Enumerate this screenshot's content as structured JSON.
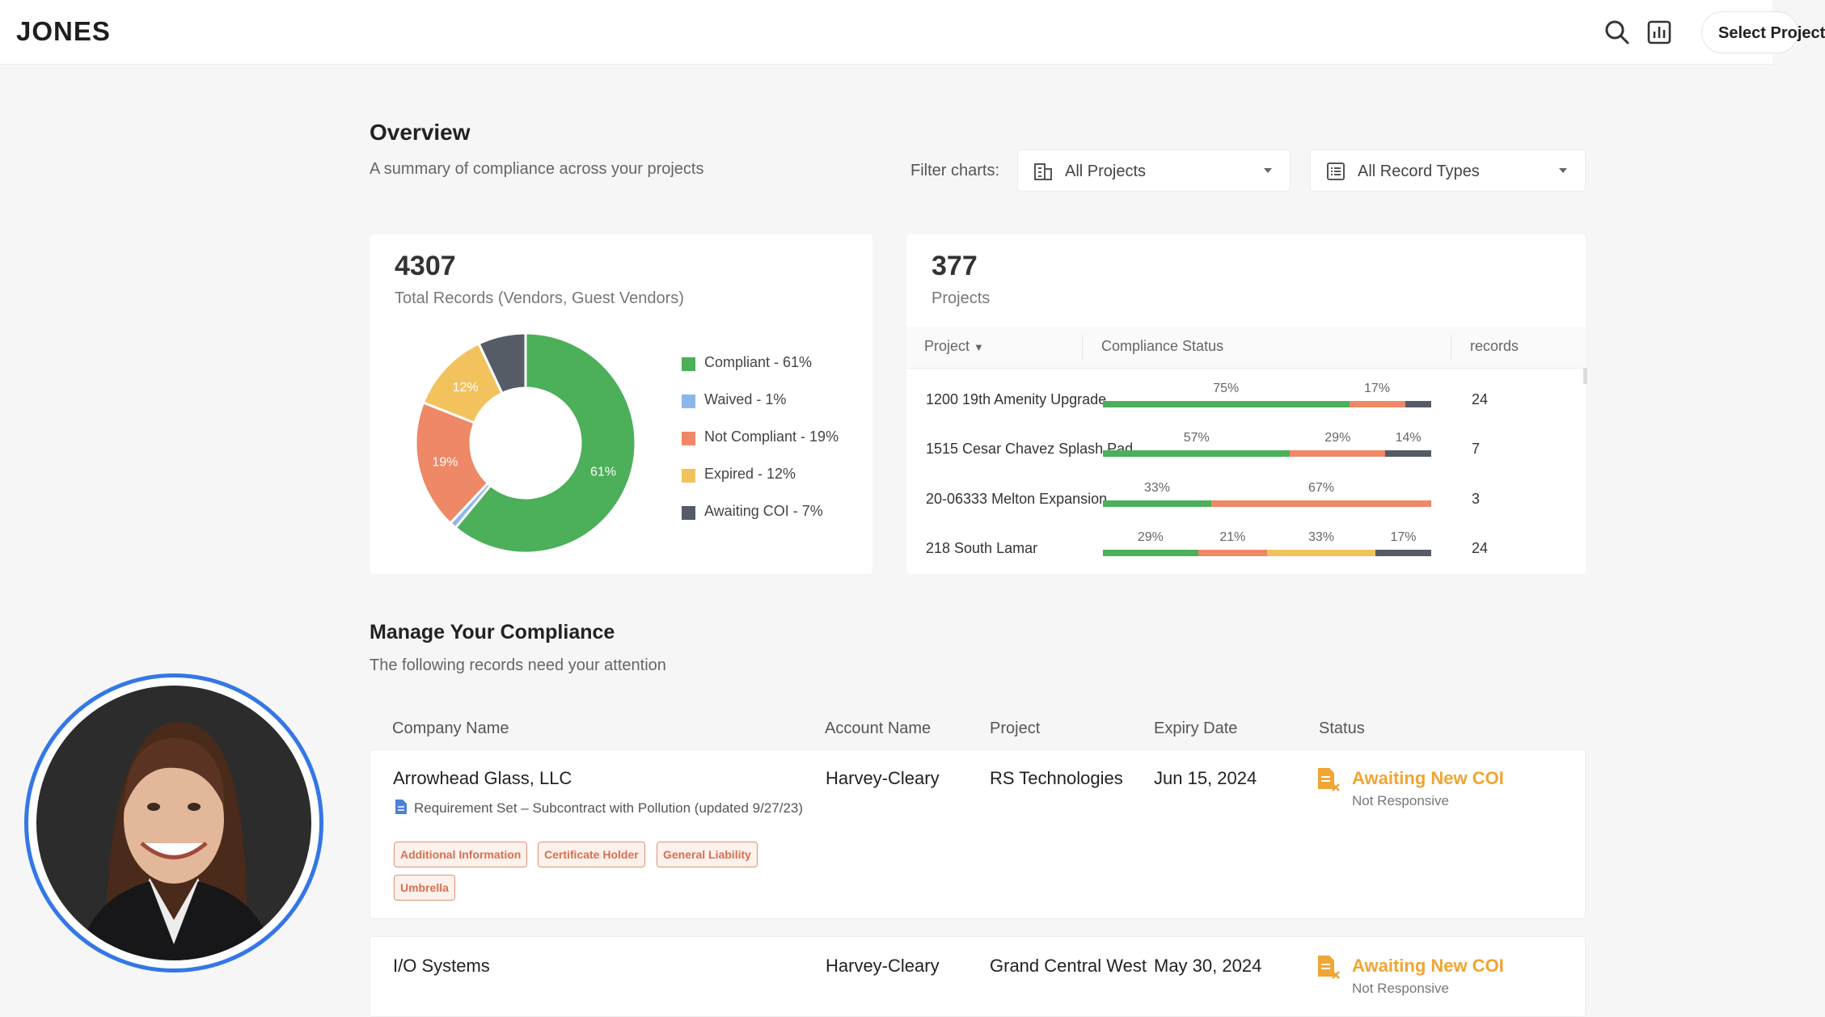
{
  "app": {
    "logo": "JONES",
    "select_label": "Select Project"
  },
  "overview": {
    "title": "Overview",
    "subtitle": "A summary of compliance across your projects",
    "filter_label": "Filter charts:",
    "project_filter": "All Projects",
    "record_type_filter": "All Record Types"
  },
  "records_card": {
    "total": "4307",
    "label": "Total Records (Vendors, Guest Vendors)",
    "legend": [
      {
        "label": "Compliant - 61%",
        "color": "#4caf5a"
      },
      {
        "label": "Waived - 1%",
        "color": "#8ab8ea"
      },
      {
        "label": "Not Compliant - 19%",
        "color": "#ee8866"
      },
      {
        "label": "Expired - 12%",
        "color": "#f2c35c"
      },
      {
        "label": "Awaiting COI - 7%",
        "color": "#555c66"
      }
    ]
  },
  "projects_card": {
    "total": "377",
    "label": "Projects",
    "col_project": "Project",
    "col_status": "Compliance Status",
    "col_records": "records",
    "rows": [
      {
        "name": "1200 19th Amenity Upgrade",
        "records": "24"
      },
      {
        "name": "1515 Cesar Chavez Splash Pad",
        "records": "7"
      },
      {
        "name": "20-06333 Melton Expansion",
        "records": "3"
      },
      {
        "name": "218 South Lamar",
        "records": "24"
      }
    ]
  },
  "chart_data": [
    {
      "type": "pie",
      "categories": [
        "Compliant",
        "Waived",
        "Not Compliant",
        "Expired",
        "Awaiting COI"
      ],
      "values": [
        61,
        1,
        19,
        12,
        7
      ],
      "slice_labels": [
        "61%",
        "",
        "19%",
        "12%",
        ""
      ],
      "colors": [
        "#4caf5a",
        "#8ab8ea",
        "#ee8866",
        "#f2c35c",
        "#555c66"
      ]
    },
    {
      "type": "bar",
      "stacked": true,
      "orientation": "horizontal",
      "categories": [
        "1200 19th Amenity Upgrade",
        "1515 Cesar Chavez Splash Pad",
        "20-06333 Melton Expansion",
        "218 South Lamar"
      ],
      "series": [
        {
          "status": "compliant",
          "color": "#4caf5a",
          "values": [
            75,
            57,
            33,
            29
          ]
        },
        {
          "status": "not-compliant",
          "color": "#ee8866",
          "values": [
            17,
            29,
            67,
            21
          ]
        },
        {
          "status": "expired",
          "color": "#f2c35c",
          "values": [
            0,
            0,
            0,
            33
          ]
        },
        {
          "status": "awaiting",
          "color": "#555c66",
          "values": [
            8,
            14,
            0,
            17
          ]
        }
      ],
      "bar_labels": [
        [
          "75%",
          "17%",
          "",
          ""
        ],
        [
          "57%",
          "29%",
          "",
          "14%"
        ],
        [
          "33%",
          "67%",
          "",
          ""
        ],
        [
          "29%",
          "21%",
          "33%",
          "17%"
        ]
      ]
    }
  ],
  "manage": {
    "title": "Manage Your Compliance",
    "subtitle": "The following records need your attention",
    "headers": {
      "company": "Company Name",
      "account": "Account Name",
      "project": "Project",
      "expiry": "Expiry Date",
      "status": "Status"
    },
    "rows": [
      {
        "company": "Arrowhead Glass, LLC",
        "requirement": "Requirement Set – Subcontract with Pollution (updated 9/27/23)",
        "account": "Harvey-Cleary",
        "project": "RS Technologies",
        "expiry": "Jun 15, 2024",
        "status": "Awaiting New COI",
        "status_sub": "Not Responsive",
        "tags": [
          "Additional Information",
          "Certificate Holder",
          "General Liability",
          "Umbrella"
        ]
      },
      {
        "company": "I/O Systems",
        "account": "Harvey-Cleary",
        "project": "Grand Central West",
        "expiry": "May 30, 2024",
        "status": "Awaiting New COI",
        "status_sub": "Not Responsive"
      }
    ]
  }
}
